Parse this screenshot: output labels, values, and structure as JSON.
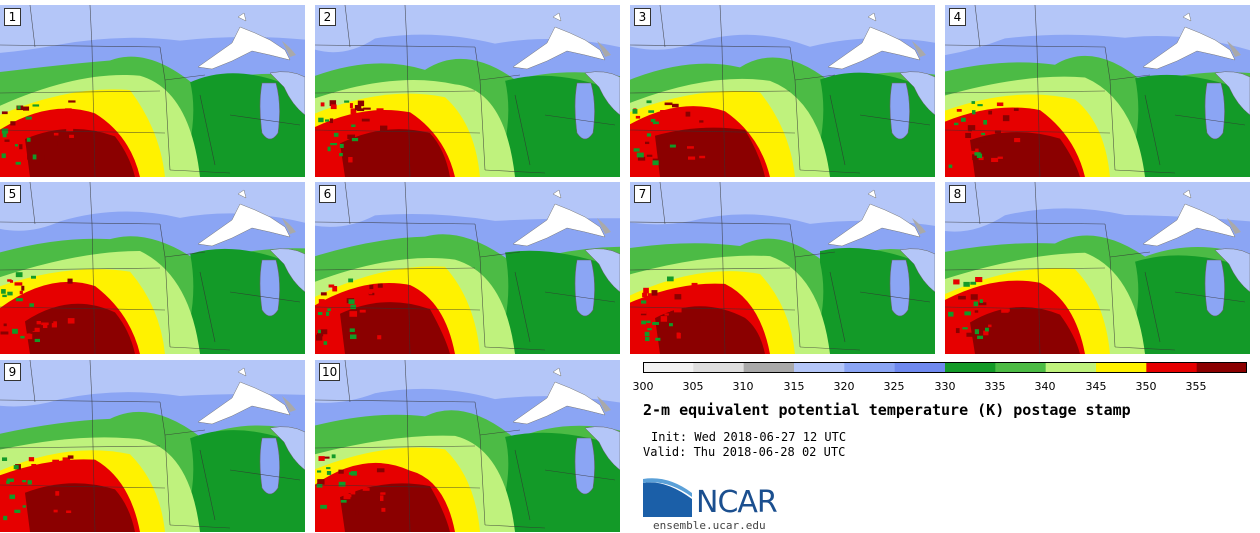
{
  "panels": [
    {
      "label": "1"
    },
    {
      "label": "2"
    },
    {
      "label": "3"
    },
    {
      "label": "4"
    },
    {
      "label": "5"
    },
    {
      "label": "6"
    },
    {
      "label": "7"
    },
    {
      "label": "8"
    },
    {
      "label": "9"
    },
    {
      "label": "10"
    }
  ],
  "colorbar": {
    "ticks": [
      "300",
      "305",
      "310",
      "315",
      "320",
      "325",
      "330",
      "335",
      "340",
      "345",
      "350",
      "355"
    ],
    "bins": [
      {
        "from": 300,
        "to": 305,
        "color": "#f2f2f2"
      },
      {
        "from": 305,
        "to": 310,
        "color": "#dedede"
      },
      {
        "from": 310,
        "to": 315,
        "color": "#a9a9a9"
      },
      {
        "from": 315,
        "to": 320,
        "color": "#b4c6f8"
      },
      {
        "from": 320,
        "to": 325,
        "color": "#8ba5f4"
      },
      {
        "from": 325,
        "to": 330,
        "color": "#6f89ef"
      },
      {
        "from": 330,
        "to": 335,
        "color": "#139a28"
      },
      {
        "from": 335,
        "to": 340,
        "color": "#4cbb45"
      },
      {
        "from": 340,
        "to": 345,
        "color": "#bff27d"
      },
      {
        "from": 345,
        "to": 350,
        "color": "#fff200"
      },
      {
        "from": 350,
        "to": 355,
        "color": "#e60000"
      },
      {
        "from": 355,
        "to": 360,
        "color": "#8b0000"
      }
    ]
  },
  "title": "2-m equivalent potential temperature (K) postage stamp",
  "init": "Init: Wed 2018-06-27 12 UTC",
  "valid": "Valid: Thu 2018-06-28 02 UTC",
  "logo": {
    "text": "NCAR",
    "url": "ensemble.ucar.edu"
  }
}
